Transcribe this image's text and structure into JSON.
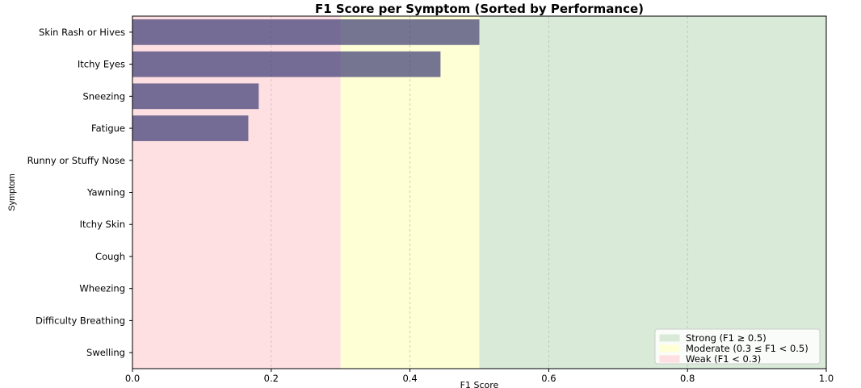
{
  "chart_data": {
    "type": "bar",
    "orientation": "horizontal",
    "title": "F1 Score per Symptom (Sorted by Performance)",
    "xlabel": "F1 Score",
    "ylabel": "Symptom",
    "xlim": [
      0,
      1.0
    ],
    "xticks": [
      "0.0",
      "0.2",
      "0.4",
      "0.6",
      "0.8",
      "1.0"
    ],
    "grid": "vertical dashed",
    "bar_color": "#3b3b75",
    "categories": [
      "Skin Rash or Hives",
      "Itchy Eyes",
      "Sneezing",
      "Fatigue",
      "Runny or Stuffy Nose",
      "Yawning",
      "Itchy Skin",
      "Cough",
      "Wheezing",
      "Difficulty Breathing",
      "Swelling"
    ],
    "values": [
      0.5,
      0.444,
      0.182,
      0.167,
      0,
      0,
      0,
      0,
      0,
      0,
      0
    ],
    "bands": [
      {
        "label": "Strong (F1 ≥ 0.5)",
        "from": 0.5,
        "to": 1.0,
        "color": "#d9ead9"
      },
      {
        "label": "Moderate (0.3 ≤ F1 < 0.5)",
        "from": 0.3,
        "to": 0.5,
        "color": "#ffffd6"
      },
      {
        "label": "Weak (F1 < 0.3)",
        "from": 0.0,
        "to": 0.3,
        "color": "#ffe0e2"
      }
    ],
    "legend_position": "lower-right"
  }
}
